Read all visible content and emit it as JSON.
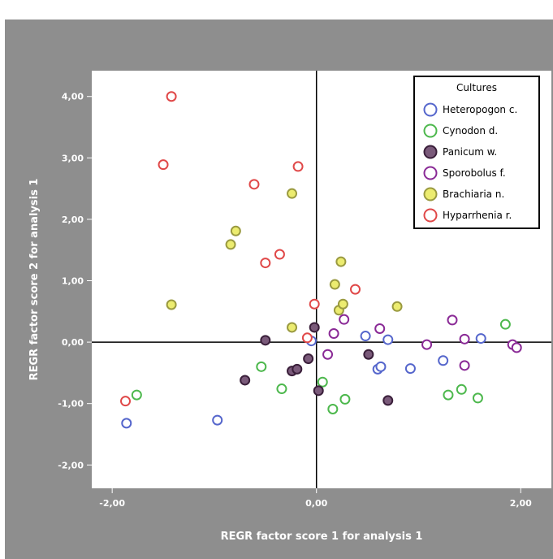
{
  "chart_data": {
    "type": "scatter",
    "title": "",
    "xlabel": "REGR factor score   1 for analysis 1",
    "ylabel": "REGR factor score   2 for analysis 1",
    "xlim": [
      -2.2,
      2.3
    ],
    "ylim": [
      -2.38,
      4.42
    ],
    "x_ticks": [
      -2,
      0,
      2
    ],
    "x_tick_labels": [
      "-2,00",
      "0,00",
      "2,00"
    ],
    "y_ticks": [
      4,
      3,
      2,
      1,
      0,
      -1,
      -2
    ],
    "y_tick_labels": [
      "4,00",
      "3,00",
      "2,00",
      "1,00",
      "0,00",
      "-1,00",
      "-2,00"
    ],
    "reference_lines": {
      "x": 0,
      "y": 0
    },
    "grid": false,
    "legend": {
      "title": "Cultures",
      "position": "top-right"
    },
    "series": [
      {
        "name": "Heteropogon c.",
        "color": "#5566cc",
        "filled": false,
        "points": [
          [
            -1.86,
            -1.32
          ],
          [
            -0.97,
            -1.27
          ],
          [
            -0.05,
            0.02
          ],
          [
            0.48,
            0.1
          ],
          [
            0.6,
            -0.44
          ],
          [
            0.63,
            -0.4
          ],
          [
            0.7,
            0.04
          ],
          [
            0.92,
            -0.43
          ],
          [
            1.24,
            -0.3
          ],
          [
            1.61,
            0.06
          ]
        ]
      },
      {
        "name": "Cynodon d.",
        "color": "#4db84d",
        "filled": false,
        "points": [
          [
            -1.76,
            -0.86
          ],
          [
            -0.54,
            -0.4
          ],
          [
            -0.34,
            -0.76
          ],
          [
            0.06,
            -0.65
          ],
          [
            0.16,
            -1.09
          ],
          [
            0.28,
            -0.93
          ],
          [
            1.29,
            -0.86
          ],
          [
            1.42,
            -0.77
          ],
          [
            1.58,
            -0.91
          ],
          [
            1.85,
            0.29
          ]
        ]
      },
      {
        "name": "Panicum w.",
        "color": "#3a1f3a",
        "fill": "#7a5a7a",
        "filled": true,
        "points": [
          [
            -0.7,
            -0.62
          ],
          [
            -0.5,
            0.03
          ],
          [
            -0.24,
            -0.47
          ],
          [
            -0.19,
            -0.44
          ],
          [
            -0.08,
            -0.27
          ],
          [
            -0.02,
            0.24
          ],
          [
            0.02,
            -0.79
          ],
          [
            0.51,
            -0.2
          ],
          [
            0.7,
            -0.95
          ]
        ]
      },
      {
        "name": "Sporobolus f.",
        "color": "#8a2a96",
        "fill": "#a070b0",
        "filled": false,
        "points": [
          [
            0.11,
            -0.2
          ],
          [
            0.17,
            0.14
          ],
          [
            0.27,
            0.37
          ],
          [
            0.62,
            0.22
          ],
          [
            1.08,
            -0.04
          ],
          [
            1.33,
            0.36
          ],
          [
            1.45,
            0.05
          ],
          [
            1.45,
            -0.38
          ],
          [
            1.92,
            -0.04
          ],
          [
            1.96,
            -0.09
          ]
        ]
      },
      {
        "name": "Brachiaria n.",
        "color": "#9a9a40",
        "fill": "#ecec70",
        "filled": true,
        "points": [
          [
            -1.42,
            0.61
          ],
          [
            -0.84,
            1.59
          ],
          [
            -0.79,
            1.81
          ],
          [
            -0.24,
            2.42
          ],
          [
            -0.24,
            0.24
          ],
          [
            0.18,
            0.94
          ],
          [
            0.22,
            0.52
          ],
          [
            0.24,
            1.31
          ],
          [
            0.26,
            0.62
          ],
          [
            0.79,
            0.58
          ]
        ]
      },
      {
        "name": "Hyparrhenia r.",
        "color": "#e04848",
        "filled": false,
        "points": [
          [
            -1.42,
            4.0
          ],
          [
            -1.5,
            2.89
          ],
          [
            -0.61,
            2.57
          ],
          [
            -0.18,
            2.86
          ],
          [
            -0.5,
            1.29
          ],
          [
            -0.36,
            1.43
          ],
          [
            0.38,
            0.86
          ],
          [
            -0.02,
            0.62
          ],
          [
            -0.09,
            0.07
          ],
          [
            -1.87,
            -0.96
          ]
        ]
      }
    ]
  }
}
